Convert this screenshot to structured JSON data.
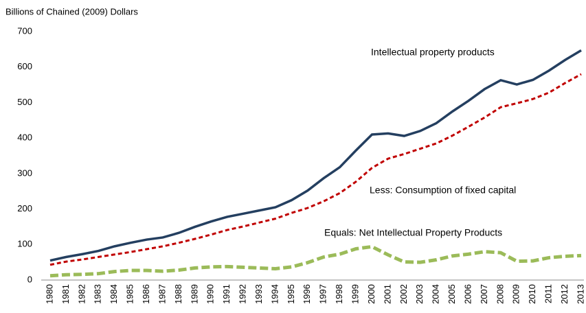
{
  "chart_data": {
    "type": "line",
    "y_axis_label": "Billions of Chained (2009) Dollars",
    "categories": [
      "1980",
      "1981",
      "1982",
      "1983",
      "1984",
      "1985",
      "1986",
      "1987",
      "1988",
      "1989",
      "1990",
      "1991",
      "1992",
      "1993",
      "1994",
      "1995",
      "1996",
      "1997",
      "1998",
      "1999",
      "2000",
      "2001",
      "2002",
      "2003",
      "2004",
      "2005",
      "2006",
      "2007",
      "2008",
      "2009",
      "2010",
      "2011",
      "2012",
      "2013"
    ],
    "series": [
      {
        "name": "Intellectual property products",
        "color": "#243f60",
        "dash": "none",
        "values": [
          55,
          65,
          73,
          82,
          95,
          105,
          114,
          120,
          133,
          150,
          165,
          178,
          187,
          196,
          205,
          225,
          252,
          287,
          318,
          365,
          410,
          413,
          406,
          420,
          442,
          475,
          505,
          538,
          563,
          551,
          564,
          590,
          620,
          647
        ]
      },
      {
        "name": "Less:  Consumption of fixed capital",
        "color": "#c00000",
        "dash": "dashed",
        "values": [
          43,
          52,
          58,
          65,
          72,
          79,
          87,
          95,
          105,
          116,
          128,
          141,
          151,
          162,
          173,
          189,
          203,
          222,
          245,
          277,
          316,
          342,
          355,
          370,
          385,
          407,
          432,
          458,
          487,
          498,
          510,
          528,
          555,
          580
        ]
      },
      {
        "name": "Equals:  Net Intellectual Property Products",
        "color": "#9bbb59",
        "dash": "dashed",
        "values": [
          12,
          15,
          16,
          18,
          24,
          27,
          27,
          25,
          28,
          34,
          37,
          38,
          36,
          34,
          32,
          37,
          49,
          65,
          73,
          88,
          94,
          71,
          51,
          50,
          57,
          68,
          73,
          80,
          77,
          53,
          54,
          63,
          67,
          69
        ]
      }
    ],
    "ylim": [
      0,
      700
    ],
    "yticks": [
      0,
      100,
      200,
      300,
      400,
      500,
      600,
      700
    ],
    "grid": false
  }
}
